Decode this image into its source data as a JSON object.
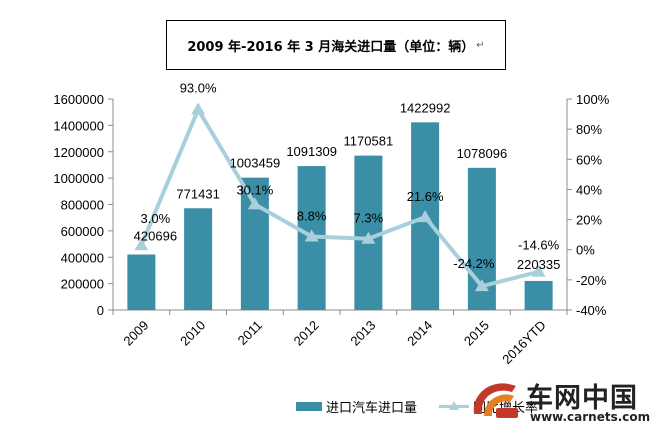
{
  "title": "2009 年-2016 年 3 月海关进口量（单位：辆）",
  "title_mark": "↵",
  "chart_data": {
    "type": "bar",
    "title": "2009 年-2016 年 3 月海关进口量（单位：辆）",
    "categories": [
      "2009",
      "2010",
      "2011",
      "2012",
      "2013",
      "2014",
      "2015",
      "2016YTD"
    ],
    "series": [
      {
        "name": "进口汽车进口量",
        "type": "bar",
        "axis": "left",
        "values": [
          420696,
          771431,
          1003459,
          1091309,
          1170581,
          1422992,
          1078096,
          220335
        ],
        "labels": [
          "420696",
          "771431",
          "1003459",
          "1091309",
          "1170581",
          "1422992",
          "1078096",
          "220335"
        ],
        "color": "#3a8ea6"
      },
      {
        "name": "同比增长率",
        "type": "line",
        "axis": "right",
        "values": [
          3.0,
          93.0,
          30.1,
          8.8,
          7.3,
          21.6,
          -24.2,
          -14.6
        ],
        "labels": [
          "3.0%",
          "93.0%",
          "30.1%",
          "8.8%",
          "7.3%",
          "21.6%",
          "-24.2%",
          "-14.6%"
        ],
        "color": "#a9cfdb"
      }
    ],
    "y_left": {
      "min": 0,
      "max": 1600000,
      "ticks": [
        "0",
        "200000",
        "400000",
        "600000",
        "800000",
        "1000000",
        "1200000",
        "1400000",
        "1600000"
      ]
    },
    "y_right": {
      "min": -40,
      "max": 100,
      "ticks": [
        "-40%",
        "-20%",
        "0%",
        "20%",
        "40%",
        "60%",
        "80%",
        "100%"
      ]
    },
    "grid": false,
    "legend": "bottom"
  },
  "legend": {
    "bar_label": "进口汽车进口量",
    "line_label": "同比增长率"
  },
  "watermark": {
    "name": "车网中国",
    "url": "www.carnets.com"
  },
  "colors": {
    "bar": "#3a8ea6",
    "line": "#a9cfdb",
    "watermark_red": "#c0392b"
  }
}
